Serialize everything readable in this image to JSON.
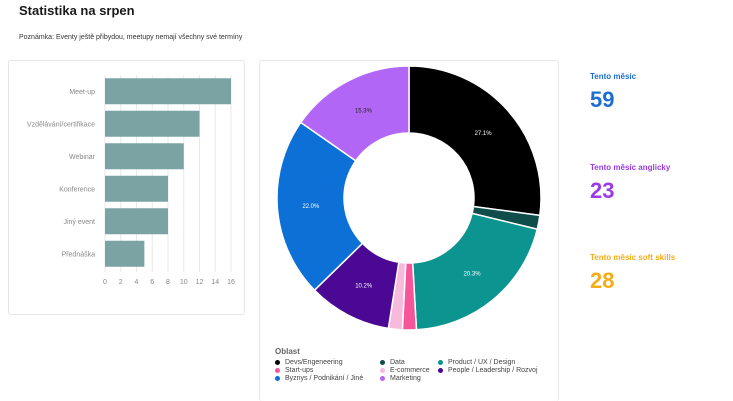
{
  "page": {
    "title": "Statistika na srpen",
    "note": "Poznámka: Eventy ještě přibydou, meetupy nemají všechny své termíny"
  },
  "kpis": [
    {
      "label": "Tento měsíc",
      "value": "59",
      "color": "#1c6fd1"
    },
    {
      "label": "Tento měsíc anglicky",
      "value": "23",
      "color": "#9b3be8"
    },
    {
      "label": "Tento měsíc soft skills",
      "value": "28",
      "color": "#f5ad17"
    }
  ],
  "chart_data": [
    {
      "type": "bar",
      "orientation": "horizontal",
      "categories": [
        "Meet-up",
        "Vzdělávání/certifikace",
        "Webinar",
        "Konference",
        "Jiný event",
        "Přednáška"
      ],
      "values": [
        16,
        12,
        10,
        8,
        8,
        5
      ],
      "xticks": [
        0,
        2,
        4,
        6,
        8,
        10,
        12,
        14,
        16
      ],
      "xlim": [
        0,
        16
      ],
      "grid": true,
      "color": "#7ba3a3"
    },
    {
      "type": "pie",
      "donut": true,
      "legend_title": "Oblast",
      "legend_position": "bottom",
      "series": [
        {
          "name": "Devs/Engeneering",
          "value": 27.1,
          "label": "27.1%",
          "color": "#000000"
        },
        {
          "name": "Data",
          "value": 1.7,
          "label": "",
          "color": "#0f4d4a"
        },
        {
          "name": "Product / UX / Design",
          "value": 20.3,
          "label": "20.3%",
          "color": "#0b9490"
        },
        {
          "name": "Start-ups",
          "value": 1.7,
          "label": "",
          "color": "#f7559a"
        },
        {
          "name": "E-commerce",
          "value": 1.7,
          "label": "",
          "color": "#f7b9dc"
        },
        {
          "name": "People / Leadership / Rozvoj",
          "value": 10.2,
          "label": "10.2%",
          "color": "#4b0894"
        },
        {
          "name": "Byznys / Podnikání / Jiné",
          "value": 22.0,
          "label": "22.0%",
          "color": "#0c70d6"
        },
        {
          "name": "Marketing",
          "value": 15.3,
          "label": "15.3%",
          "color": "#b266f5"
        }
      ],
      "legend_order": [
        "Devs/Engeneering",
        "Data",
        "Product / UX / Design",
        "Start-ups",
        "E-commerce",
        "People / Leadership / Rozvoj",
        "Byznys / Podnikání / Jiné",
        "Marketing"
      ]
    }
  ]
}
